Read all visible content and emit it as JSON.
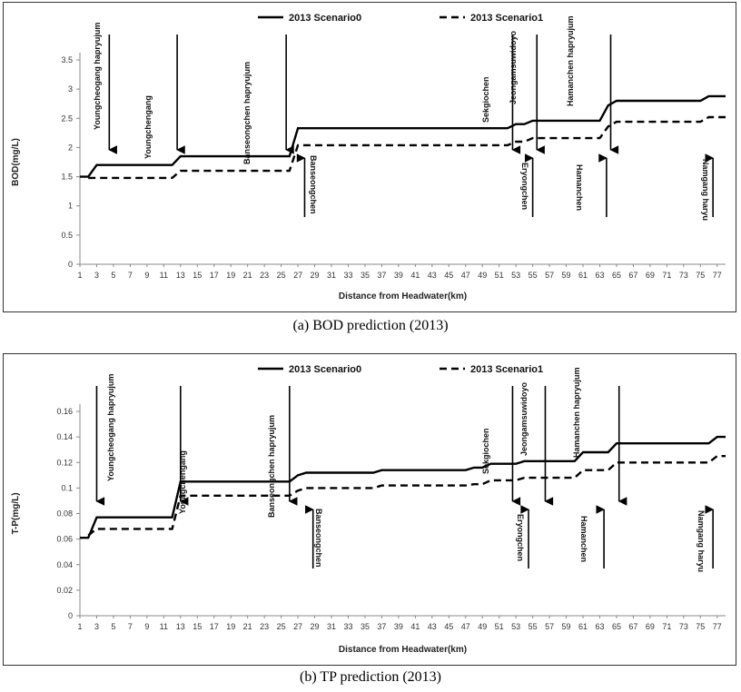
{
  "chart_data": [
    {
      "type": "line",
      "xlabel": "Distance from Headwater(km)",
      "ylabel": "BOD(mg/L)",
      "ylim": [
        0,
        3.5
      ],
      "yticks": [
        "0",
        "0.5",
        "1",
        "1.5",
        "2",
        "2.5",
        "3",
        "3.5"
      ],
      "xticks": [
        "1",
        "3",
        "5",
        "7",
        "9",
        "11",
        "13",
        "15",
        "17",
        "19",
        "21",
        "23",
        "25",
        "27",
        "29",
        "31",
        "33",
        "35",
        "37",
        "39",
        "41",
        "43",
        "45",
        "47",
        "49",
        "51",
        "53",
        "55",
        "57",
        "59",
        "61",
        "63",
        "65",
        "67",
        "69",
        "71",
        "73",
        "75",
        "77"
      ],
      "xlim": [
        1,
        78
      ],
      "legend": "top-center",
      "grid": false,
      "series": [
        {
          "name": "2013 Scenario0",
          "style": "solid",
          "points": [
            [
              1,
              1.5
            ],
            [
              2,
              1.5
            ],
            [
              3,
              1.7
            ],
            [
              12,
              1.7
            ],
            [
              13,
              1.85
            ],
            [
              26,
              1.85
            ],
            [
              27,
              2.33
            ],
            [
              52,
              2.33
            ],
            [
              53,
              2.4
            ],
            [
              54,
              2.4
            ],
            [
              55,
              2.46
            ],
            [
              63,
              2.46
            ],
            [
              64,
              2.72
            ],
            [
              65,
              2.8
            ],
            [
              75,
              2.8
            ],
            [
              76,
              2.88
            ],
            [
              78,
              2.88
            ]
          ]
        },
        {
          "name": "2013 Scenario1",
          "style": "dashed",
          "points": [
            [
              2,
              1.48
            ],
            [
              12,
              1.48
            ],
            [
              13,
              1.6
            ],
            [
              26,
              1.6
            ],
            [
              27,
              2.04
            ],
            [
              52,
              2.04
            ],
            [
              53,
              2.1
            ],
            [
              54,
              2.1
            ],
            [
              55,
              2.16
            ],
            [
              63,
              2.16
            ],
            [
              64,
              2.36
            ],
            [
              65,
              2.44
            ],
            [
              75,
              2.44
            ],
            [
              76,
              2.52
            ],
            [
              78,
              2.52
            ]
          ]
        }
      ],
      "annotations": [
        {
          "label": "Youngcheogang hapryujum",
          "side": "above",
          "x": 4.5
        },
        {
          "label": "Youngchengang",
          "side": "above",
          "x": 12.6
        },
        {
          "label": "Banseongchen hapryujum",
          "side": "above",
          "x": 25.6
        },
        {
          "label": "Banseongchen",
          "side": "below",
          "x": 27.8
        },
        {
          "label": "Sekgiochen",
          "side": "above",
          "x": 52.6
        },
        {
          "label": "Jeongamsuwidoyo",
          "side": "above",
          "x": 55.5
        },
        {
          "label": "Eryongchen",
          "side": "below",
          "x": 55.0
        },
        {
          "label": "Hamanchen hapryujum",
          "side": "above",
          "x": 64.3
        },
        {
          "label": "Hamanchen",
          "side": "below",
          "x": 63.8
        },
        {
          "label": "Namgang haryu",
          "side": "below",
          "x": 76.5
        }
      ]
    },
    {
      "type": "line",
      "xlabel": "Distance from Headwater(km)",
      "ylabel": "T-P(mg/L)",
      "ylim": [
        0,
        0.16
      ],
      "yticks": [
        "0",
        "0.02",
        "0.04",
        "0.06",
        "0.08",
        "0.1",
        "0.12",
        "0.14",
        "0.16"
      ],
      "xticks": [
        "1",
        "3",
        "5",
        "7",
        "9",
        "11",
        "13",
        "15",
        "17",
        "19",
        "21",
        "23",
        "25",
        "27",
        "29",
        "31",
        "33",
        "35",
        "37",
        "39",
        "41",
        "43",
        "45",
        "47",
        "49",
        "51",
        "53",
        "55",
        "57",
        "59",
        "61",
        "63",
        "65",
        "67",
        "69",
        "71",
        "73",
        "75",
        "77"
      ],
      "xlim": [
        1,
        78
      ],
      "legend": "top-center",
      "grid": false,
      "series": [
        {
          "name": "2013 Scenario0",
          "style": "solid",
          "points": [
            [
              1,
              0.061
            ],
            [
              2,
              0.061
            ],
            [
              3,
              0.077
            ],
            [
              12,
              0.077
            ],
            [
              13,
              0.105
            ],
            [
              26,
              0.105
            ],
            [
              27,
              0.11
            ],
            [
              28,
              0.112
            ],
            [
              36,
              0.112
            ],
            [
              37,
              0.114
            ],
            [
              47,
              0.114
            ],
            [
              48,
              0.116
            ],
            [
              49,
              0.116
            ],
            [
              50,
              0.119
            ],
            [
              53,
              0.119
            ],
            [
              54,
              0.121
            ],
            [
              60,
              0.121
            ],
            [
              61,
              0.128
            ],
            [
              64,
              0.128
            ],
            [
              65,
              0.135
            ],
            [
              76,
              0.135
            ],
            [
              77,
              0.14
            ],
            [
              78,
              0.14
            ]
          ]
        },
        {
          "name": "2013 Scenario1",
          "style": "dashed",
          "points": [
            [
              2,
              0.063
            ],
            [
              3,
              0.068
            ],
            [
              12,
              0.068
            ],
            [
              13,
              0.094
            ],
            [
              26,
              0.094
            ],
            [
              27,
              0.098
            ],
            [
              28,
              0.1
            ],
            [
              36,
              0.1
            ],
            [
              37,
              0.102
            ],
            [
              47,
              0.102
            ],
            [
              48,
              0.103
            ],
            [
              49,
              0.103
            ],
            [
              50,
              0.106
            ],
            [
              53,
              0.106
            ],
            [
              54,
              0.108
            ],
            [
              60,
              0.108
            ],
            [
              61,
              0.114
            ],
            [
              64,
              0.114
            ],
            [
              65,
              0.12
            ],
            [
              76,
              0.12
            ],
            [
              77,
              0.125
            ],
            [
              78,
              0.125
            ]
          ]
        }
      ],
      "annotations": [
        {
          "label": "Youngcheogang hapryujum",
          "side": "above",
          "x": 3.0
        },
        {
          "label": "Youngchengang",
          "side": "above",
          "x": 13.0
        },
        {
          "label": "Banseongchen hapryujum",
          "side": "above",
          "x": 26.0
        },
        {
          "label": "Banseongchen",
          "side": "below",
          "x": 28.8
        },
        {
          "label": "Sekgiochen",
          "side": "above",
          "x": 52.6
        },
        {
          "label": "Jeongamsuwidoyo",
          "side": "above",
          "x": 56.5
        },
        {
          "label": "Eryongchen",
          "side": "below",
          "x": 54.5
        },
        {
          "label": "Hamanchen hapryujum",
          "side": "above",
          "x": 65.3
        },
        {
          "label": "Hamanchen",
          "side": "below",
          "x": 63.5
        },
        {
          "label": "Namgang haryu",
          "side": "below",
          "x": 76.5
        }
      ]
    }
  ],
  "captions": {
    "a": "(a) BOD prediction (2013)",
    "b": "(b) TP prediction (2013)"
  }
}
